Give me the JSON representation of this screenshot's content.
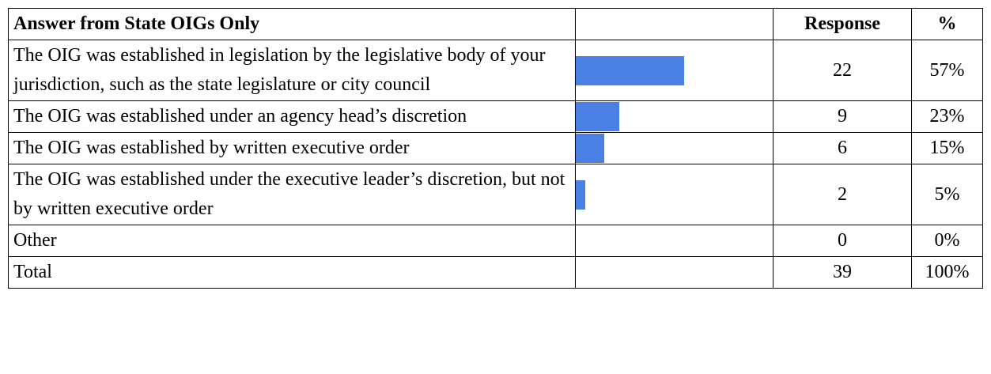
{
  "table": {
    "header": [
      "Answer from State OIGs Only",
      "Response",
      "%"
    ],
    "rows": [
      {
        "answer": "The OIG was established in legislation by the legislative body of your jurisdiction, such as the state legislature or city council",
        "response": 22,
        "percent": 57,
        "percent_label": "57%"
      },
      {
        "answer": "The OIG was established under an agency head’s discretion",
        "response": 9,
        "percent": 23,
        "percent_label": "23%"
      },
      {
        "answer": "The OIG was established by written executive order",
        "response": 6,
        "percent": 15,
        "percent_label": "15%"
      },
      {
        "answer": "The OIG was established under the executive leader’s discretion, but not by written executive order",
        "response": 2,
        "percent": 5,
        "percent_label": "5%"
      },
      {
        "answer": "Other",
        "response": 0,
        "percent": 0,
        "percent_label": "0%"
      }
    ],
    "total": {
      "answer": "Total",
      "response": 39,
      "percent": 100,
      "percent_label": "100%"
    }
  }
}
